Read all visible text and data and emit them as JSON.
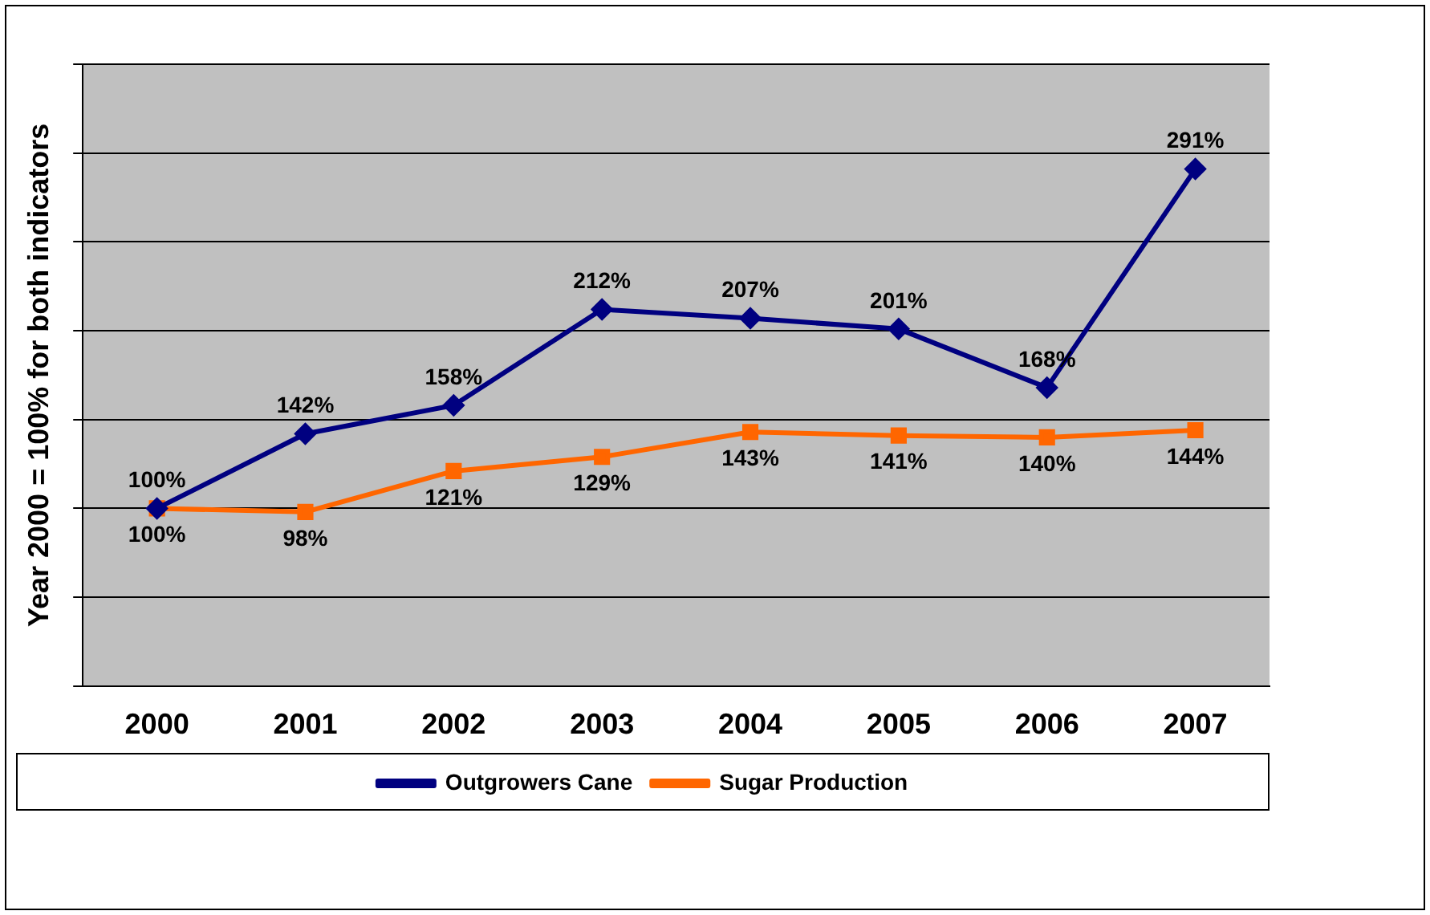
{
  "chart_data": {
    "type": "line",
    "ylabel": "Year 2000 = 100% for both indicators",
    "categories": [
      "2000",
      "2001",
      "2002",
      "2003",
      "2004",
      "2005",
      "2006",
      "2007"
    ],
    "series": [
      {
        "name": "Outgrowers Cane",
        "color": "#000080",
        "marker": "diamond",
        "values": [
          100,
          142,
          158,
          212,
          207,
          201,
          168,
          291
        ],
        "value_labels": [
          "100%",
          "142%",
          "158%",
          "212%",
          "207%",
          "201%",
          "168%",
          "291%"
        ]
      },
      {
        "name": "Sugar Production",
        "color": "#ff6600",
        "marker": "square",
        "values": [
          100,
          98,
          121,
          129,
          143,
          141,
          140,
          144
        ],
        "value_labels": [
          "100%",
          "98%",
          "121%",
          "129%",
          "143%",
          "141%",
          "140%",
          "144%"
        ]
      }
    ],
    "ylim": [
      0,
      350
    ],
    "yticks": [
      {
        "value": 0,
        "label": null
      },
      {
        "value": 50,
        "label": null
      },
      {
        "value": 100,
        "label": null
      },
      {
        "value": 150,
        "label": null
      },
      {
        "value": 200,
        "label": null
      },
      {
        "value": 250,
        "label": null
      },
      {
        "value": 300,
        "label": null
      },
      {
        "value": 350,
        "label": null
      }
    ],
    "tick_labels": "x",
    "grid": "y",
    "legend": "bottom"
  }
}
